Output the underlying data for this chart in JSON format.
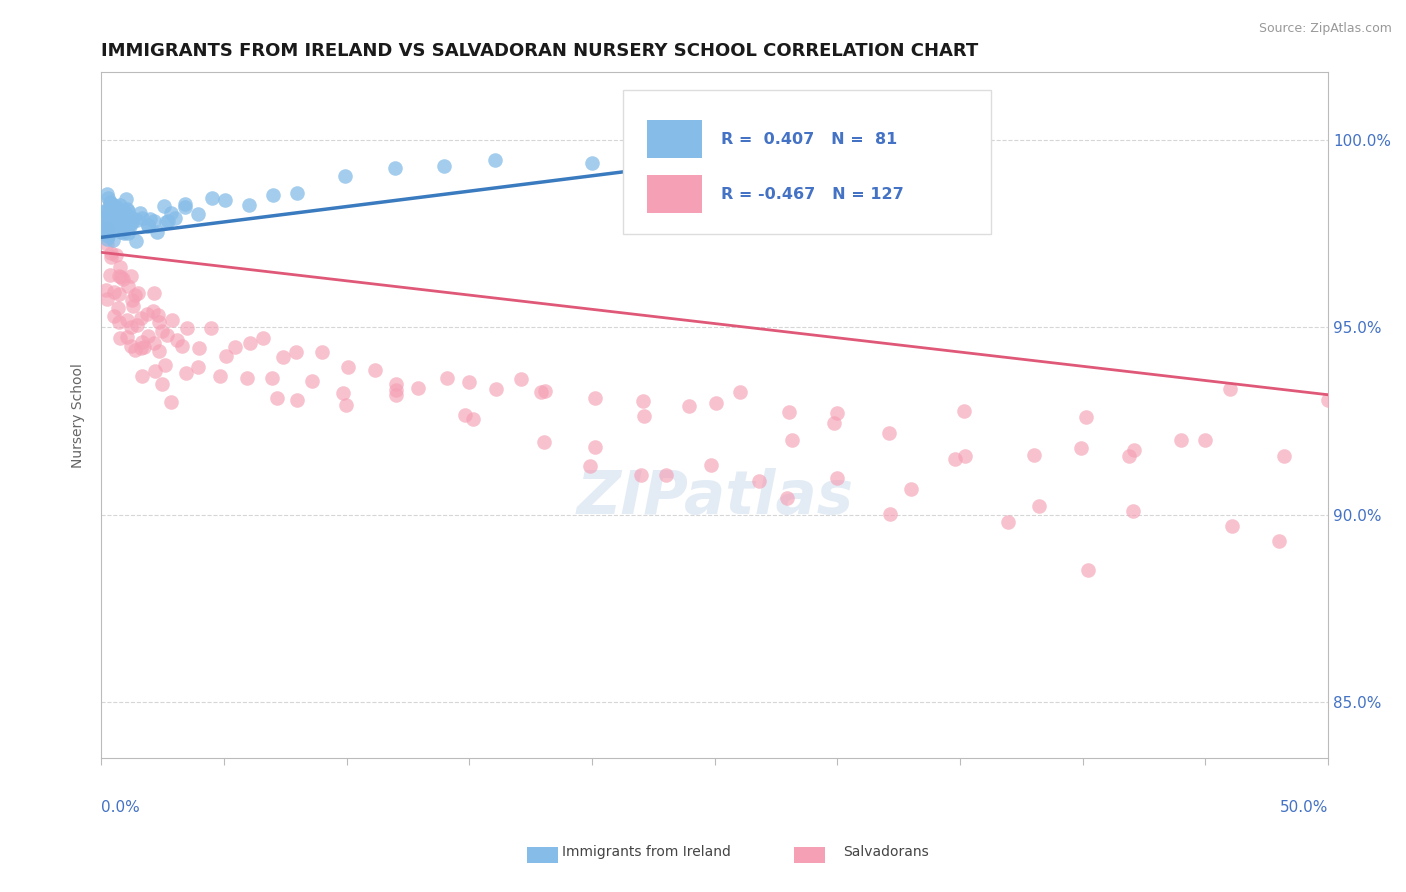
{
  "title": "IMMIGRANTS FROM IRELAND VS SALVADORAN NURSERY SCHOOL CORRELATION CHART",
  "source": "Source: ZipAtlas.com",
  "ylabel": "Nursery School",
  "y_ticks": [
    85.0,
    90.0,
    95.0,
    100.0
  ],
  "x_min": 0.0,
  "x_max": 50.0,
  "y_min": 83.5,
  "y_max": 101.8,
  "ireland_R": 0.407,
  "ireland_N": 81,
  "salvadoran_R": -0.467,
  "salvadoran_N": 127,
  "ireland_color": "#85BCE8",
  "salvadoran_color": "#F5A0B5",
  "ireland_line_color": "#3A7ABF",
  "salvadoran_line_color": "#E05878",
  "watermark": "ZIPatlas",
  "background_color": "#FFFFFF",
  "grid_color": "#CCCCCC",
  "axis_color": "#BBBBBB",
  "title_color": "#1A1A1A",
  "source_color": "#999999",
  "tick_label_color": "#4472C4",
  "legend_color": "#4472C4",
  "ireland_seed_x": [
    0.1,
    0.2,
    0.2,
    0.3,
    0.3,
    0.3,
    0.4,
    0.4,
    0.5,
    0.5,
    0.5,
    0.6,
    0.6,
    0.7,
    0.7,
    0.8,
    0.8,
    0.9,
    0.9,
    1.0,
    1.0,
    1.0,
    1.1,
    1.1,
    1.2,
    1.2,
    1.3,
    1.4,
    1.5,
    1.6,
    1.7,
    1.8,
    2.0,
    2.2,
    2.5,
    2.8,
    3.0,
    3.5,
    4.0,
    4.5,
    5.0,
    6.0,
    7.0,
    8.0,
    10.0,
    12.0,
    14.0,
    16.0,
    20.0,
    22.0,
    25.0,
    28.0
  ],
  "ireland_seed_y": [
    97.8,
    98.0,
    97.5,
    98.2,
    97.8,
    98.5,
    98.0,
    97.6,
    97.9,
    98.3,
    97.5,
    98.1,
    97.7,
    98.0,
    97.8,
    97.9,
    98.2,
    97.6,
    98.0,
    97.8,
    98.1,
    97.5,
    97.9,
    98.3,
    97.7,
    98.0,
    97.8,
    97.6,
    97.9,
    98.0,
    97.7,
    97.8,
    98.0,
    97.9,
    98.1,
    97.8,
    98.0,
    98.2,
    98.0,
    98.3,
    98.5,
    98.3,
    98.6,
    98.8,
    99.0,
    99.2,
    99.3,
    99.5,
    99.6,
    99.7,
    99.8,
    99.9
  ],
  "salvadoran_seed_x": [
    0.1,
    0.2,
    0.3,
    0.4,
    0.5,
    0.5,
    0.6,
    0.7,
    0.8,
    0.9,
    1.0,
    1.0,
    1.1,
    1.2,
    1.3,
    1.4,
    1.5,
    1.6,
    1.7,
    1.8,
    1.9,
    2.0,
    2.1,
    2.2,
    2.3,
    2.5,
    2.7,
    3.0,
    3.2,
    3.5,
    4.0,
    4.5,
    5.0,
    5.5,
    6.0,
    6.5,
    7.0,
    7.5,
    8.0,
    8.5,
    9.0,
    10.0,
    11.0,
    12.0,
    13.0,
    14.0,
    15.0,
    16.0,
    17.0,
    18.0,
    20.0,
    22.0,
    24.0,
    26.0,
    28.0,
    30.0,
    32.0,
    35.0,
    38.0,
    40.0,
    42.0,
    44.0,
    46.0
  ],
  "salvadoran_seed_y": [
    97.5,
    97.2,
    96.8,
    97.0,
    96.5,
    96.9,
    96.2,
    96.7,
    96.0,
    96.4,
    96.1,
    95.8,
    96.3,
    95.6,
    96.0,
    95.4,
    95.8,
    95.2,
    95.6,
    95.0,
    95.5,
    95.2,
    95.6,
    95.0,
    95.4,
    95.1,
    94.8,
    95.0,
    94.6,
    94.8,
    94.5,
    94.8,
    94.3,
    94.6,
    94.2,
    94.5,
    94.0,
    94.3,
    94.1,
    93.8,
    94.2,
    93.8,
    94.0,
    93.5,
    93.8,
    93.3,
    93.6,
    93.2,
    93.5,
    93.0,
    93.2,
    93.0,
    92.8,
    93.1,
    92.5,
    92.8,
    92.3,
    92.5,
    92.0,
    92.3,
    91.8,
    92.0,
    93.5
  ],
  "sal_extra_x": [
    0.3,
    0.4,
    0.5,
    0.6,
    0.7,
    0.8,
    0.9,
    1.0,
    1.1,
    1.2,
    1.3,
    1.4,
    1.5,
    1.6,
    1.7,
    1.8,
    1.9,
    2.0,
    2.2,
    2.4,
    2.6,
    2.8,
    3.0,
    3.5,
    4.0,
    5.0,
    6.0,
    7.0,
    8.0,
    10.0,
    12.0,
    15.0,
    18.0,
    22.0,
    25.0,
    28.0,
    30.0,
    35.0,
    40.0,
    42.0,
    45.0,
    48.0,
    50.0,
    20.0,
    25.0,
    30.0,
    35.0,
    10.0,
    15.0,
    20.0,
    22.0,
    28.0,
    33.0,
    38.0,
    42.0,
    46.0,
    48.0,
    12.0,
    18.0,
    23.0,
    27.0,
    32.0,
    37.0,
    40.0
  ],
  "sal_extra_y": [
    96.0,
    95.5,
    95.8,
    95.2,
    95.5,
    95.0,
    95.3,
    94.8,
    95.1,
    94.5,
    94.8,
    94.3,
    94.6,
    94.0,
    94.4,
    93.8,
    94.2,
    93.6,
    94.0,
    93.5,
    93.8,
    93.3,
    94.5,
    93.8,
    94.2,
    93.5,
    94.0,
    93.5,
    93.0,
    92.8,
    93.0,
    92.5,
    93.0,
    92.5,
    93.0,
    92.0,
    92.5,
    91.5,
    92.0,
    91.5,
    92.0,
    91.5,
    93.0,
    91.8,
    91.5,
    91.0,
    91.5,
    93.2,
    92.5,
    91.5,
    91.0,
    90.5,
    91.0,
    90.5,
    90.0,
    89.5,
    89.0,
    93.5,
    92.0,
    91.0,
    90.5,
    90.0,
    89.5,
    88.5
  ]
}
